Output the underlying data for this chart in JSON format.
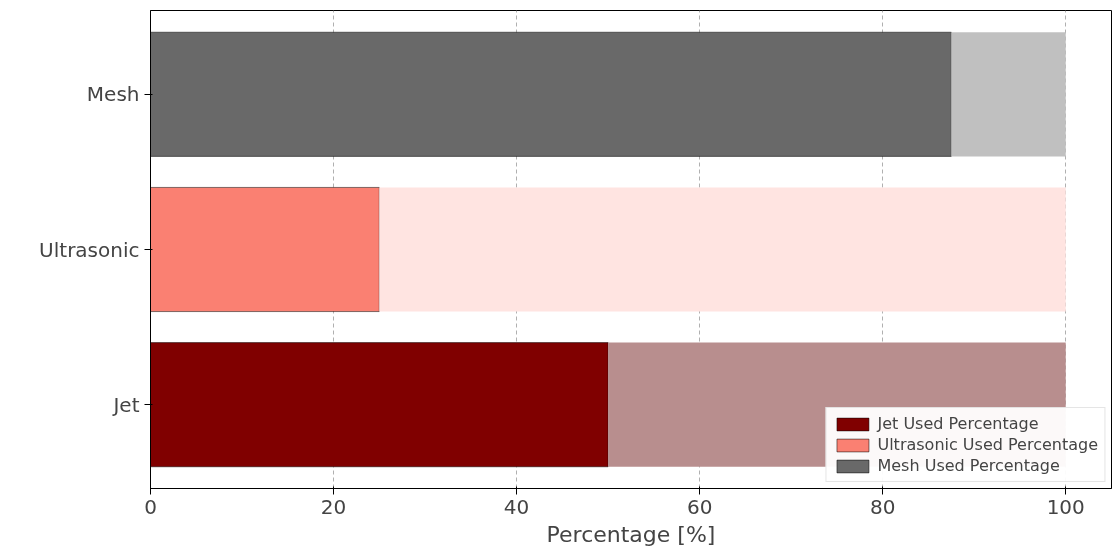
{
  "chart_data": {
    "type": "bar",
    "orientation": "horizontal",
    "stacked": true,
    "categories": [
      "Mesh",
      "Ultrasonic",
      "Jet"
    ],
    "xlabel": "Percentage [%]",
    "xlim": [
      0,
      105
    ],
    "xticks": [
      0,
      20,
      40,
      60,
      80,
      100
    ],
    "grid": "x",
    "legend": "bottom right",
    "series": [
      {
        "name": "Jet Used Percentage",
        "color": "#800000",
        "values": [
          null,
          null,
          50
        ]
      },
      {
        "name": "Ultrasonic Used Percentage",
        "color": "#fa8072",
        "values": [
          null,
          25,
          null
        ]
      },
      {
        "name": "Mesh Used Percentage",
        "color": "#696969",
        "values": [
          87.5,
          null,
          null
        ]
      },
      {
        "color": "#b88e8e",
        "values": [
          null,
          null,
          50
        ]
      },
      {
        "color": "#ffe4e1",
        "values": [
          null,
          75,
          null
        ]
      },
      {
        "color": "#c0c0c0",
        "values": [
          12.5,
          null,
          null
        ]
      }
    ]
  }
}
